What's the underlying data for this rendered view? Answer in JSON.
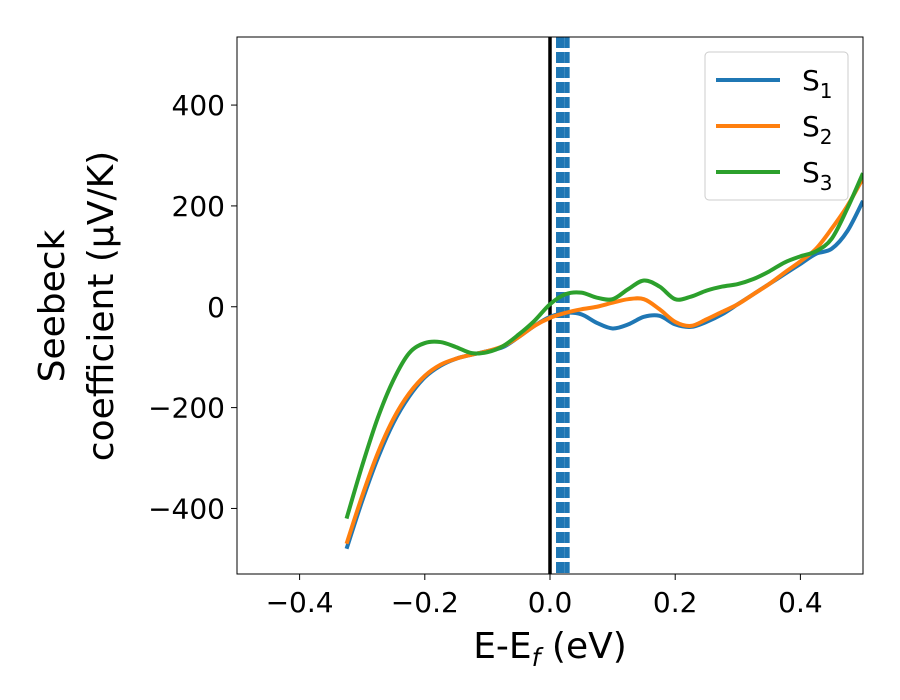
{
  "chart_data": {
    "type": "line",
    "xlabel": "E-E",
    "xlabel_sub": "f",
    "xlabel_unit": " (eV)",
    "ylabel_line1": "Seebeck",
    "ylabel_line2": "coefficient  (μV/K)",
    "xlim": [
      -0.5,
      0.5
    ],
    "ylim": [
      -530,
      535
    ],
    "xticks": [
      -0.4,
      -0.2,
      0.0,
      0.2,
      0.4
    ],
    "xtick_labels": [
      "−0.4",
      "−0.2",
      "0.0",
      "0.2",
      "0.4"
    ],
    "yticks": [
      -400,
      -200,
      0,
      200,
      400
    ],
    "ytick_labels": [
      "−400",
      "−200",
      "0",
      "200",
      "400"
    ],
    "grid": false,
    "legend_position": "top-right",
    "vertical_lines": [
      {
        "x": 0.0,
        "color": "#000000",
        "style": "solid"
      },
      {
        "x": 0.012,
        "color": "#1f77b4",
        "style": "dashed"
      },
      {
        "x": 0.016,
        "color": "#1f77b4",
        "style": "dashed"
      },
      {
        "x": 0.02,
        "color": "#1f77b4",
        "style": "dashed"
      },
      {
        "x": 0.025,
        "color": "#1f77b4",
        "style": "dashed"
      },
      {
        "x": 0.029,
        "color": "#1f77b4",
        "style": "dashed"
      }
    ],
    "series": [
      {
        "name": "S",
        "sub": "1",
        "color": "#1f77b4",
        "x": [
          -0.325,
          -0.3,
          -0.275,
          -0.25,
          -0.225,
          -0.2,
          -0.175,
          -0.15,
          -0.125,
          -0.1,
          -0.075,
          -0.05,
          -0.025,
          0.0,
          0.025,
          0.05,
          0.075,
          0.1,
          0.125,
          0.15,
          0.175,
          0.2,
          0.225,
          0.25,
          0.275,
          0.3,
          0.325,
          0.35,
          0.375,
          0.4,
          0.425,
          0.45,
          0.475,
          0.5
        ],
        "y": [
          -480,
          -385,
          -300,
          -230,
          -178,
          -140,
          -117,
          -103,
          -95,
          -88,
          -80,
          -60,
          -38,
          -20,
          -12,
          -15,
          -32,
          -43,
          -35,
          -20,
          -18,
          -35,
          -40,
          -30,
          -15,
          5,
          25,
          45,
          65,
          85,
          105,
          115,
          150,
          210
        ]
      },
      {
        "name": "S",
        "sub": "2",
        "color": "#ff7f0e",
        "x": [
          -0.325,
          -0.3,
          -0.275,
          -0.25,
          -0.225,
          -0.2,
          -0.175,
          -0.15,
          -0.125,
          -0.1,
          -0.075,
          -0.05,
          -0.025,
          0.0,
          0.025,
          0.05,
          0.075,
          0.1,
          0.125,
          0.15,
          0.175,
          0.2,
          0.225,
          0.25,
          0.275,
          0.3,
          0.325,
          0.35,
          0.375,
          0.4,
          0.425,
          0.45,
          0.475,
          0.5
        ],
        "y": [
          -470,
          -375,
          -290,
          -222,
          -172,
          -137,
          -115,
          -103,
          -95,
          -88,
          -78,
          -60,
          -38,
          -22,
          -12,
          -5,
          0,
          8,
          15,
          15,
          -5,
          -30,
          -38,
          -25,
          -10,
          5,
          25,
          45,
          68,
          90,
          115,
          155,
          200,
          255
        ]
      },
      {
        "name": "S",
        "sub": "3",
        "color": "#2ca02c",
        "x": [
          -0.325,
          -0.3,
          -0.275,
          -0.25,
          -0.225,
          -0.2,
          -0.175,
          -0.15,
          -0.125,
          -0.1,
          -0.075,
          -0.05,
          -0.025,
          0.0,
          0.025,
          0.05,
          0.075,
          0.1,
          0.125,
          0.15,
          0.175,
          0.2,
          0.225,
          0.25,
          0.275,
          0.3,
          0.325,
          0.35,
          0.375,
          0.4,
          0.425,
          0.45,
          0.475,
          0.5
        ],
        "y": [
          -420,
          -315,
          -220,
          -145,
          -92,
          -72,
          -70,
          -80,
          -92,
          -90,
          -78,
          -55,
          -28,
          5,
          25,
          28,
          18,
          15,
          35,
          52,
          40,
          15,
          20,
          32,
          40,
          45,
          55,
          70,
          88,
          100,
          110,
          135,
          195,
          265
        ]
      }
    ]
  }
}
